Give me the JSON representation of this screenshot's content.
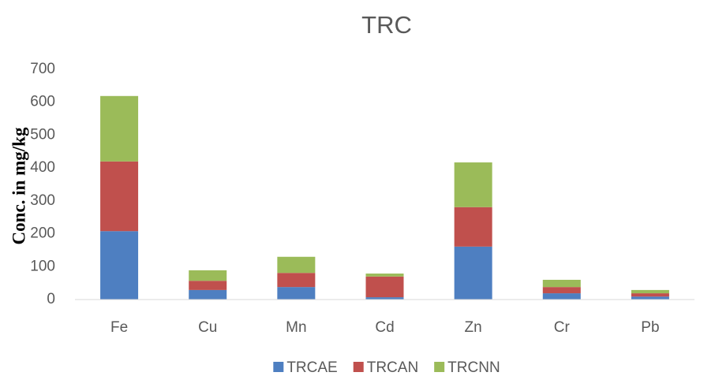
{
  "chart_data": {
    "type": "stacked_bar",
    "title": "TRC",
    "y_label": "Conc. in mg/kg",
    "categories": [
      "Fe",
      "Cu",
      "Mn",
      "Cd",
      "Zn",
      "Cr",
      "Pb"
    ],
    "series": [
      {
        "name": "TRCAE",
        "color": "#4e7fc1",
        "values": [
          208,
          29,
          38,
          7,
          161,
          19,
          9
        ]
      },
      {
        "name": "TRCAN",
        "color": "#c0504d",
        "values": [
          212,
          28,
          43,
          63,
          120,
          19,
          10
        ]
      },
      {
        "name": "TRCNN",
        "color": "#9bbb59",
        "values": [
          199,
          32,
          49,
          9,
          136,
          22,
          10
        ]
      }
    ],
    "ylim": [
      0,
      700
    ],
    "yticks": [
      0,
      100,
      200,
      300,
      400,
      500,
      600,
      700
    ],
    "grid": false,
    "legend": "bottom"
  }
}
